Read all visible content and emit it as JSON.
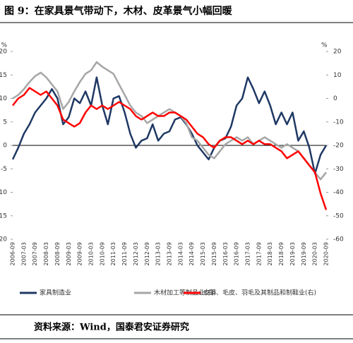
{
  "title": "图 9：在家具景气带动下，木材、皮革景气小幅回暖",
  "source": "资料来源：Wind，国泰君安证券研究",
  "chart_data": {
    "type": "line",
    "y_unit": "%",
    "y2_unit": "%",
    "ylim": [
      -20,
      20
    ],
    "yticks": [
      -20,
      -15,
      -10,
      -5,
      0,
      5,
      10,
      15,
      20
    ],
    "y2lim": [
      -60,
      20
    ],
    "y2ticks": [
      -60,
      -50,
      -40,
      -30,
      -20,
      -10,
      0,
      10,
      20
    ],
    "xticks": [
      "2006-09",
      "2007-03",
      "2007-09",
      "2008-03",
      "2008-09",
      "2009-03",
      "2009-09",
      "2010-03",
      "2010-09",
      "2011-03",
      "2011-09",
      "2012-03",
      "2012-09",
      "2013-03",
      "2013-09",
      "2014-03",
      "2014-09",
      "2015-03",
      "2015-09",
      "2016-03",
      "2016-09",
      "2017-03",
      "2017-09",
      "2018-03",
      "2018-09",
      "2019-03",
      "2019-09",
      "2020-03",
      "2020-09"
    ],
    "x": [
      "2006-09",
      "2006-12",
      "2007-03",
      "2007-06",
      "2007-09",
      "2007-12",
      "2008-03",
      "2008-06",
      "2008-09",
      "2008-12",
      "2009-03",
      "2009-06",
      "2009-09",
      "2009-12",
      "2010-03",
      "2010-06",
      "2010-09",
      "2010-12",
      "2011-03",
      "2011-06",
      "2011-09",
      "2011-12",
      "2012-03",
      "2012-06",
      "2012-09",
      "2012-12",
      "2013-03",
      "2013-06",
      "2013-09",
      "2013-12",
      "2014-03",
      "2014-06",
      "2014-09",
      "2014-12",
      "2015-03",
      "2015-06",
      "2015-09",
      "2015-12",
      "2016-03",
      "2016-06",
      "2016-09",
      "2016-12",
      "2017-03",
      "2017-06",
      "2017-09",
      "2017-12",
      "2018-03",
      "2018-06",
      "2018-09",
      "2018-12",
      "2019-03",
      "2019-06",
      "2019-09",
      "2019-12",
      "2020-03",
      "2020-06",
      "2020-09"
    ],
    "series": [
      {
        "name": "家具制造业",
        "color": "#1f3864",
        "values": [
          -3,
          -0.5,
          2.5,
          4.5,
          7,
          8.5,
          10,
          12,
          10,
          4.5,
          6,
          10,
          9,
          11.5,
          8.5,
          14.5,
          8.5,
          4.5,
          10,
          10.5,
          7,
          2.5,
          -0.5,
          1,
          1.5,
          4.5,
          1,
          2.5,
          3,
          5.5,
          6,
          4.5,
          2.5,
          0,
          -1.5,
          -3,
          -0.5,
          1,
          1.5,
          4,
          8.5,
          10,
          14.5,
          12,
          9,
          11.5,
          8.5,
          4.5,
          7,
          4.5,
          7,
          1,
          3,
          -0.5,
          -6,
          -2,
          0
        ]
      },
      {
        "name": "木材加工等制品业(右)",
        "color": "#a6a6a6",
        "axis": "y2",
        "values": [
          0,
          1.5,
          4,
          7,
          9.5,
          11,
          9,
          6,
          3,
          -4.5,
          -1.5,
          3,
          7,
          10.5,
          12,
          15.5,
          13.5,
          12,
          10.5,
          6,
          1.5,
          -3,
          -6,
          -7.5,
          -10.5,
          -9,
          -7.5,
          -6,
          -4.5,
          -6,
          -7.5,
          -10.5,
          -16.5,
          -18,
          -21,
          -24,
          -25.5,
          -22.5,
          -19.5,
          -18,
          -16.5,
          -18,
          -16.5,
          -19.5,
          -18,
          -16.5,
          -18,
          -19.5,
          -21,
          -19.5,
          -21,
          -22.5,
          -25.5,
          -28.5,
          -31.5,
          -34.5,
          -31.5
        ]
      },
      {
        "name": "皮革、毛皮、羽毛及其制品和制鞋业(右)",
        "color": "#ff0000",
        "axis": "y2",
        "values": [
          -3,
          0,
          1.5,
          4.5,
          3,
          1.5,
          3,
          0,
          -3,
          -9,
          -10.5,
          -12,
          -10.5,
          -6,
          -3,
          -4.5,
          -3,
          -4.5,
          -3,
          -1.5,
          -3,
          -4.5,
          -7.5,
          -9,
          -7.5,
          -6,
          -7.5,
          -7.5,
          -6,
          -6,
          -7.5,
          -9,
          -12,
          -15,
          -16.5,
          -19.5,
          -21,
          -18,
          -16.5,
          -16.5,
          -18,
          -19.5,
          -18,
          -19.5,
          -18,
          -19.5,
          -19.5,
          -21,
          -22.5,
          -25.5,
          -24,
          -22.5,
          -25.5,
          -28.5,
          -31.5,
          -40.5,
          -47.5
        ]
      }
    ]
  }
}
